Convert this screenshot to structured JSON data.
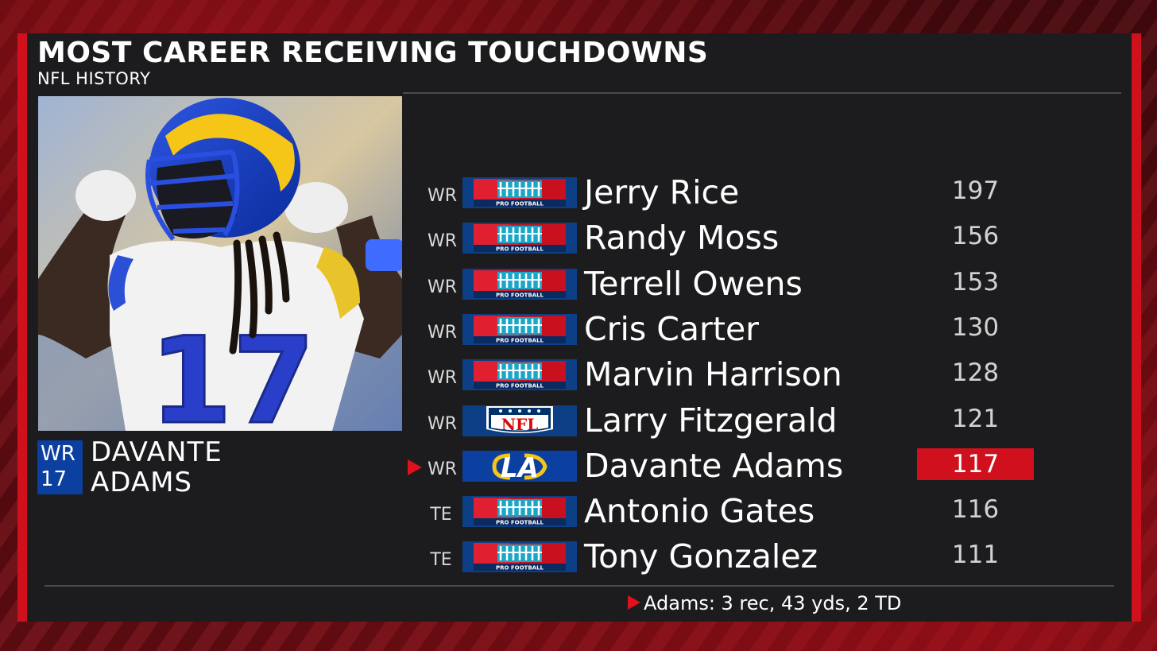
{
  "graphic": {
    "title": "MOST CAREER RECEIVING TOUCHDOWNS",
    "subtitle": "NFL HISTORY"
  },
  "featured_player": {
    "position": "WR",
    "number": "17",
    "first_name": "DAVANTE",
    "last_name": "ADAMS",
    "jersey_number_in_photo": "17"
  },
  "leaders": [
    {
      "position": "WR",
      "name": "Jerry Rice",
      "value": "197",
      "logo": "pro-football-logo",
      "highlighted": false
    },
    {
      "position": "WR",
      "name": "Randy Moss",
      "value": "156",
      "logo": "pro-football-logo",
      "highlighted": false
    },
    {
      "position": "WR",
      "name": "Terrell Owens",
      "value": "153",
      "logo": "pro-football-logo",
      "highlighted": false
    },
    {
      "position": "WR",
      "name": "Cris Carter",
      "value": "130",
      "logo": "pro-football-logo",
      "highlighted": false
    },
    {
      "position": "WR",
      "name": "Marvin Harrison",
      "value": "128",
      "logo": "pro-football-logo",
      "highlighted": false
    },
    {
      "position": "WR",
      "name": "Larry Fitzgerald",
      "value": "121",
      "logo": "nfl-logo",
      "highlighted": false
    },
    {
      "position": "WR",
      "name": "Davante Adams",
      "value": "117",
      "logo": "rams-logo",
      "highlighted": true
    },
    {
      "position": "TE",
      "name": "Antonio Gates",
      "value": "116",
      "logo": "pro-football-logo",
      "highlighted": false
    },
    {
      "position": "TE",
      "name": "Tony Gonzalez",
      "value": "111",
      "logo": "pro-football-logo",
      "highlighted": false
    }
  ],
  "logo_text": {
    "pro_football": "PRO FOOTBALL",
    "nfl": "NFL",
    "rams": "LA"
  },
  "footer": {
    "stat_line": "Adams: 3 rec, 43 yds, 2 TD"
  },
  "colors": {
    "accent_red": "#d0101c",
    "panel": "#1c1c1e",
    "rams_blue": "#0b3fa0",
    "rams_yellow": "#f5c518"
  }
}
